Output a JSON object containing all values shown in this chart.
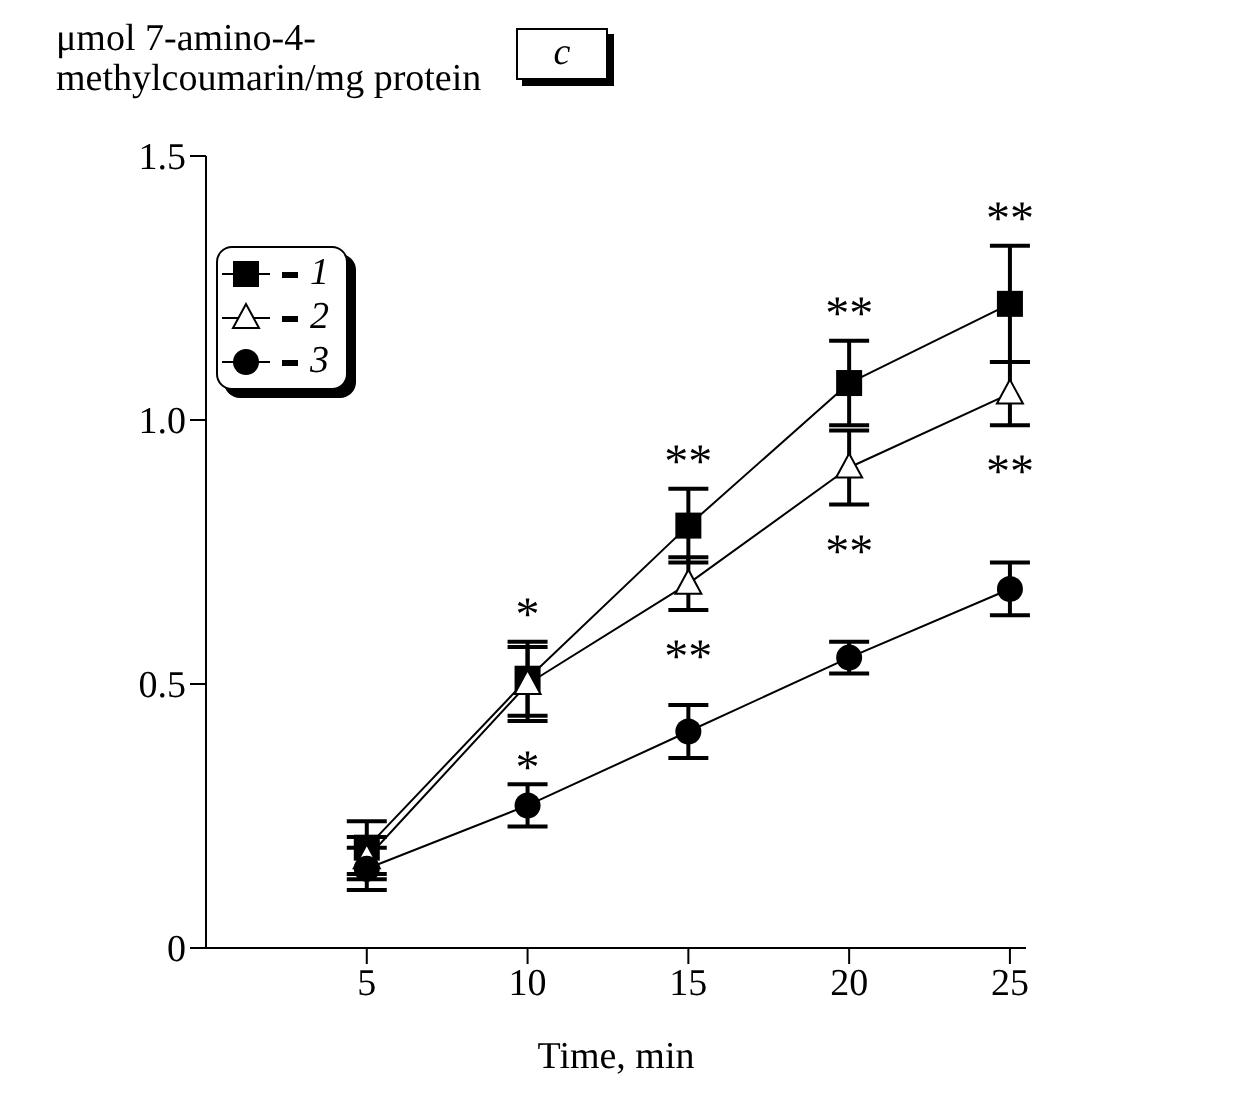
{
  "chart_data": {
    "type": "line",
    "title": "c",
    "ylabel": "μmol 7-amino-4-methylcoumarin/mg protein",
    "xlabel": "Time, min",
    "x": [
      5,
      10,
      15,
      20,
      25
    ],
    "series": [
      {
        "name": "1",
        "color": "#000000",
        "marker": "square",
        "values": [
          0.19,
          0.51,
          0.8,
          1.07,
          1.22
        ],
        "errors": [
          0.05,
          0.07,
          0.07,
          0.08,
          0.11
        ],
        "value_labels": [
          null,
          "*",
          "**",
          "**",
          "**"
        ]
      },
      {
        "name": "2",
        "color": "#000000",
        "marker": "triangle",
        "values": [
          0.17,
          0.5,
          0.69,
          0.91,
          1.05
        ],
        "errors": [
          0.04,
          0.07,
          0.05,
          0.07,
          0.06
        ],
        "value_labels": [
          null,
          "*",
          "**",
          "**",
          "**"
        ]
      },
      {
        "name": "3",
        "color": "#000000",
        "marker": "circle",
        "values": [
          0.15,
          0.27,
          0.41,
          0.55,
          0.68
        ],
        "errors": [
          0.04,
          0.04,
          0.05,
          0.03,
          0.05
        ]
      }
    ],
    "xlim": [
      0,
      25.5
    ],
    "xticks": [
      5,
      10,
      15,
      20,
      25
    ],
    "ylim": [
      0,
      1.5
    ],
    "yticks": [
      {
        "value": 0,
        "label": "0"
      },
      0.5,
      {
        "value": 1,
        "label": "1.0"
      },
      1.5
    ],
    "legend": "top left",
    "grid": false,
    "line_style": "solid"
  }
}
